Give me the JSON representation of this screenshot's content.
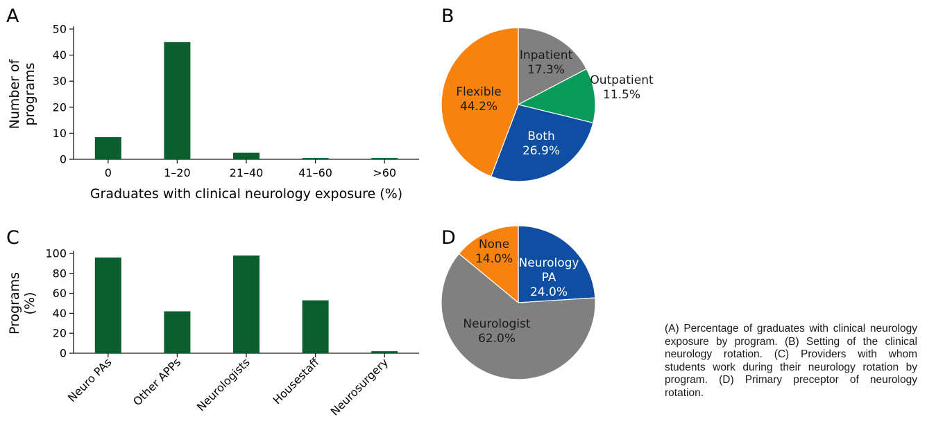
{
  "colors": {
    "bar": "#0b5e2e",
    "gray": "#808080",
    "green": "#0a9a5a",
    "blue": "#0f4ea3",
    "orange": "#f7820f",
    "axis": "#1a1a1a"
  },
  "panel_letters": {
    "a": "A",
    "b": "B",
    "c": "C",
    "d": "D"
  },
  "caption": "(A) Percentage of graduates with clinical neurology exposure by program. (B) Setting of the clinical neurology rotation. (C) Providers with whom students work during their neurology rotation by program. (D) Primary preceptor of neurology rotation.",
  "chart_data": [
    {
      "panel": "A",
      "type": "bar",
      "categories": [
        "0",
        "1–20",
        "21–40",
        "41–60",
        ">60"
      ],
      "values": [
        8.5,
        45,
        2.5,
        0.5,
        0.5
      ],
      "ylabel": [
        "Number of",
        "programs"
      ],
      "xlabel": "Graduates with clinical neurology exposure (%)",
      "ylim": [
        0,
        50
      ],
      "yticks": [
        0,
        10,
        20,
        30,
        40,
        50
      ],
      "grid": false
    },
    {
      "panel": "B",
      "type": "pie",
      "slices": [
        {
          "label": "Inpatient",
          "value": 17.3,
          "value_label": "17.3%",
          "color": "#808080",
          "text_color": "#1a1a1a"
        },
        {
          "label": "Outpatient",
          "value": 11.5,
          "value_label": "11.5%",
          "color": "#0a9a5a",
          "text_color": "#1a1a1a"
        },
        {
          "label": "Both",
          "value": 26.9,
          "value_label": "26.9%",
          "color": "#0f4ea3",
          "text_color": "#ffffff"
        },
        {
          "label": "Flexible",
          "value": 44.2,
          "value_label": "44.2%",
          "color": "#f7820f",
          "text_color": "#1a1a1a"
        }
      ]
    },
    {
      "panel": "C",
      "type": "bar",
      "categories": [
        "Neuro PAs",
        "Other APPs",
        "Neurologists",
        "Housestaff",
        "Neurosurgery"
      ],
      "values": [
        96,
        42,
        98,
        53,
        2
      ],
      "ylabel": [
        "Programs",
        "(%)"
      ],
      "xlabel": "",
      "ylim": [
        0,
        100
      ],
      "yticks": [
        0,
        20,
        40,
        60,
        80,
        100
      ],
      "grid": false
    },
    {
      "panel": "D",
      "type": "pie",
      "slices": [
        {
          "label": "Neurology PA",
          "label_lines": [
            "Neurology",
            "PA"
          ],
          "value": 24.0,
          "value_label": "24.0%",
          "color": "#0f4ea3",
          "text_color": "#ffffff"
        },
        {
          "label": "Neurologist",
          "label_lines": [
            "Neurologist"
          ],
          "value": 62.0,
          "value_label": "62.0%",
          "color": "#808080",
          "text_color": "#1a1a1a"
        },
        {
          "label": "None",
          "label_lines": [
            "None"
          ],
          "value": 14.0,
          "value_label": "14.0%",
          "color": "#f7820f",
          "text_color": "#1a1a1a"
        }
      ]
    }
  ]
}
